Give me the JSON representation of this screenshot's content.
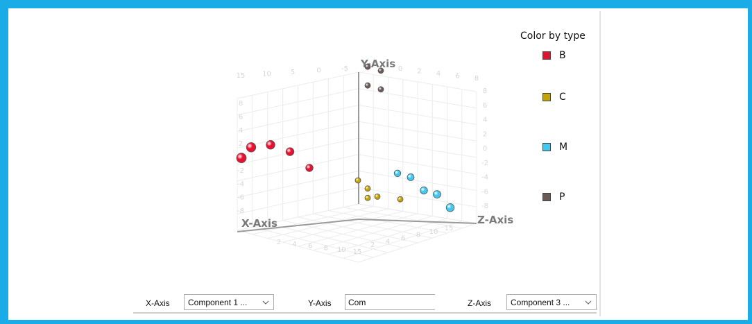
{
  "chart_data": {
    "type": "scatter",
    "dimensions": 3,
    "axis_titles": {
      "x": "X-Axis",
      "y": "Y-Axis",
      "z": "Z-Axis"
    },
    "ticks": {
      "left_wall_top": [
        "15",
        "10",
        "5",
        "0",
        "-5"
      ],
      "right_wall_top": [
        "0",
        "2",
        "4",
        "6",
        "8"
      ],
      "left_wall_side": [
        "8",
        "6",
        "4",
        "2",
        "0",
        "-2",
        "-4",
        "-6",
        "-8"
      ],
      "right_wall_side": [
        "8",
        "6",
        "4",
        "2",
        "0",
        "-2",
        "-4",
        "-6",
        "-8"
      ],
      "floor_left": [
        "2",
        "4",
        "6",
        "8",
        "10",
        "15"
      ],
      "floor_right": [
        "2",
        "4",
        "6",
        "8",
        "10",
        "15"
      ]
    },
    "legend": {
      "title": "Color by type",
      "position": "right"
    },
    "series": [
      {
        "name": "B",
        "color": "#e8102f",
        "points": [
          [
            12,
            0,
            0
          ],
          [
            11,
            1,
            0
          ],
          [
            9,
            1,
            0
          ],
          [
            7,
            0,
            0
          ],
          [
            5,
            -2,
            0
          ]
        ]
      },
      {
        "name": "C",
        "color": "#c4a400",
        "points": [
          [
            0,
            -4,
            0
          ],
          [
            -1,
            -5,
            0
          ],
          [
            -2,
            -6,
            0
          ],
          [
            -1,
            -6,
            0
          ],
          [
            -3,
            -6,
            1
          ]
        ]
      },
      {
        "name": "M",
        "color": "#40c8ef",
        "points": [
          [
            0,
            -2,
            3
          ],
          [
            0,
            -2,
            4
          ],
          [
            0,
            -3,
            5
          ],
          [
            0,
            -3,
            6
          ],
          [
            0,
            -4,
            7
          ]
        ]
      },
      {
        "name": "P",
        "color": "#6b5a57",
        "points": [
          [
            -1,
            8,
            0
          ],
          [
            -1,
            8,
            1
          ],
          [
            -1,
            6,
            0
          ],
          [
            -1,
            6,
            1
          ]
        ]
      }
    ],
    "grid": true
  },
  "controls": {
    "x_axis_label": "X-Axis",
    "x_axis_value": "Component 1 ...",
    "y_axis_label": "Y-Axis",
    "y_axis_value": "Com",
    "z_axis_label": "Z-Axis",
    "z_axis_value": "Component 3 ..."
  },
  "icons": {
    "dropdown": "chevron-down-icon"
  },
  "colors": {
    "frame": "#1aace6"
  }
}
